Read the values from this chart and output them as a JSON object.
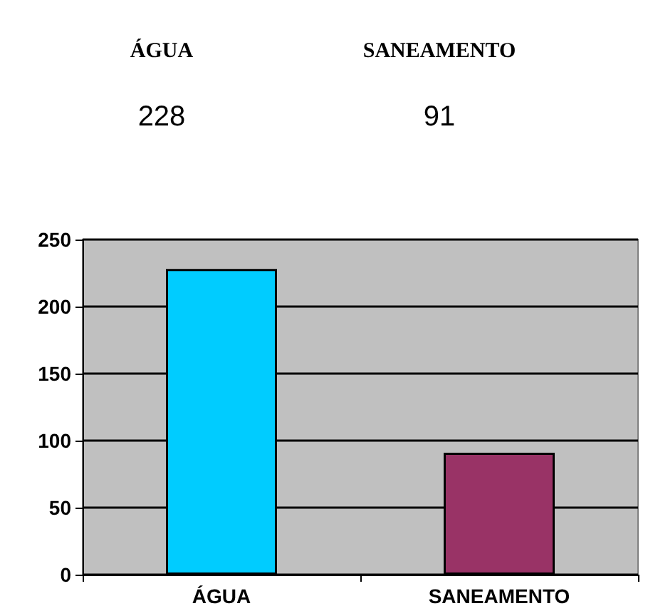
{
  "chart_data": {
    "type": "bar",
    "categories": [
      "ÁGUA",
      "SANEAMENTO"
    ],
    "values": [
      228,
      91
    ],
    "colors": [
      "#00ccff",
      "#993366"
    ],
    "ylim": [
      0,
      250
    ],
    "yticks": [
      0,
      50,
      100,
      150,
      200,
      250
    ],
    "grid": "y",
    "data_labels": true
  }
}
